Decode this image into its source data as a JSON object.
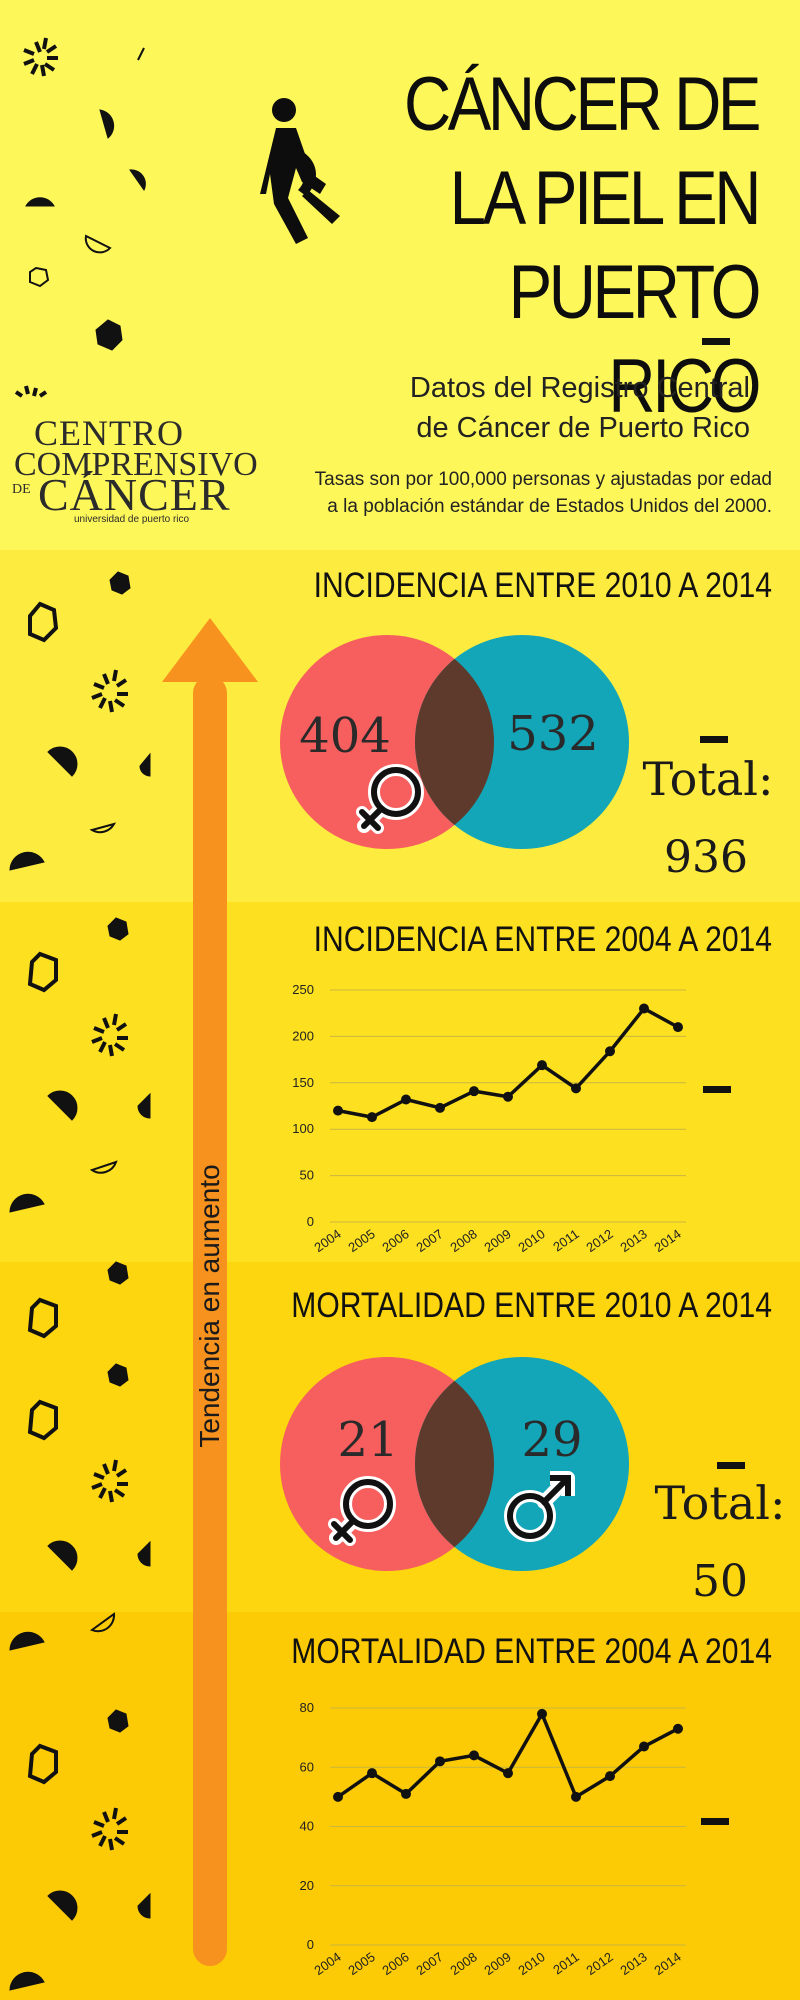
{
  "header": {
    "title_line1": "CÁNCER DE",
    "title_line2": "LA PIEL EN",
    "title_line3": "PUERTO RICO",
    "subtitle_line1": "Datos del Registro Central",
    "subtitle_line2": "de Cáncer de Puerto Rico",
    "note_line1": "Tasas son por 100,000 personas y ajustadas por edad",
    "note_line2": "a la población estándar de Estados Unidos del 2000."
  },
  "logo": {
    "line1": "CENTRO",
    "line2": "COMPRENSIVO",
    "line3_prefix": "DE",
    "line3": "CÁNCER",
    "line4": "universidad de puerto rico"
  },
  "arrow": {
    "label": "Tendencia en aumento",
    "color": "#f7921e"
  },
  "colors": {
    "female": "#f75f5f",
    "male": "#13a6b8",
    "overlap": "#5e3a2c"
  },
  "chart_data": [
    {
      "type": "venn",
      "title": "INCIDENCIA  ENTRE 2010 A 2014",
      "values": [
        404,
        532
      ],
      "total_label": "Total:",
      "total": 936
    },
    {
      "type": "line",
      "title": "INCIDENCIA ENTRE 2004 A 2014",
      "x": [
        "2004",
        "2005",
        "2006",
        "2007",
        "2008",
        "2009",
        "2010",
        "2011",
        "2012",
        "2013",
        "2014"
      ],
      "values": [
        120,
        113,
        132,
        123,
        141,
        135,
        169,
        144,
        184,
        230,
        210
      ],
      "ylim": [
        0,
        250
      ],
      "yticks": [
        0,
        50,
        100,
        150,
        200,
        250
      ],
      "grid": true
    },
    {
      "type": "venn",
      "title": "MORTALIDAD ENTRE 2010 A 2014",
      "values": [
        21,
        29
      ],
      "total_label": "Total:",
      "total": 50
    },
    {
      "type": "line",
      "title": "MORTALIDAD ENTRE 2004 A 2014",
      "x": [
        "2004",
        "2005",
        "2006",
        "2007",
        "2008",
        "2009",
        "2010",
        "2011",
        "2012",
        "2013",
        "2014"
      ],
      "values": [
        50,
        58,
        51,
        62,
        64,
        58,
        78,
        50,
        57,
        67,
        73
      ],
      "ylim": [
        0,
        80
      ],
      "yticks": [
        0,
        20,
        40,
        60,
        80
      ],
      "grid": true
    }
  ]
}
